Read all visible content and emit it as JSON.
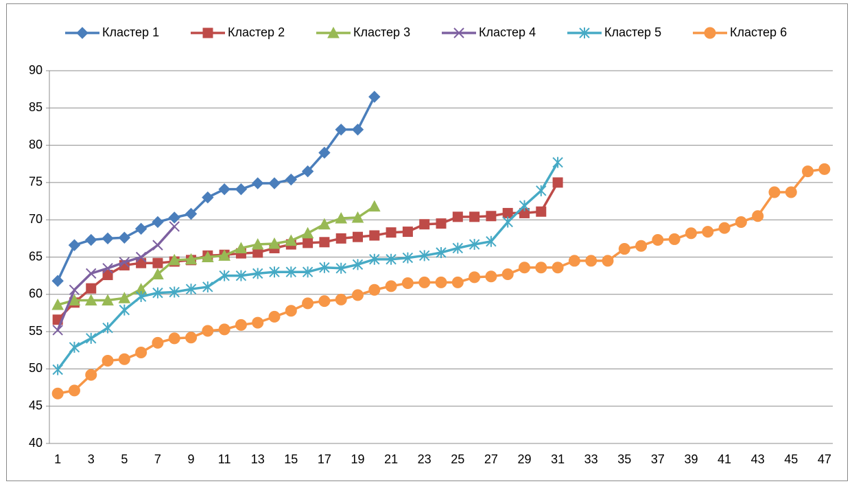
{
  "chart_data": {
    "type": "line",
    "categories": [
      1,
      null,
      3,
      null,
      5,
      null,
      7,
      null,
      9,
      null,
      11,
      null,
      13,
      null,
      15,
      null,
      17,
      null,
      19,
      null,
      21,
      null,
      23,
      null,
      25,
      null,
      27,
      null,
      29,
      null,
      31,
      null,
      33,
      null,
      35,
      null,
      37,
      null,
      39,
      null,
      41,
      null,
      43,
      null,
      45,
      null,
      47
    ],
    "ylim": [
      40,
      90
    ],
    "yticks": [
      40,
      45,
      50,
      55,
      60,
      65,
      70,
      75,
      80,
      85,
      90
    ],
    "grid": true,
    "legend": "top",
    "series": [
      {
        "name": "Кластер 1",
        "color": "#4a7ebb",
        "marker": "diamond",
        "values": [
          61.8,
          66.6,
          67.3,
          67.5,
          67.6,
          68.8,
          69.7,
          70.3,
          70.8,
          73.0,
          74.1,
          74.1,
          74.9,
          74.9,
          75.4,
          76.5,
          79.0,
          82.1,
          82.1,
          86.5,
          null,
          null,
          null,
          null,
          null,
          null,
          null,
          null,
          null,
          null,
          null,
          null,
          null,
          null,
          null,
          null,
          null,
          null,
          null,
          null,
          null,
          null,
          null,
          null,
          null,
          null,
          null
        ]
      },
      {
        "name": "Кластер 2",
        "color": "#be4b48",
        "marker": "square",
        "values": [
          56.6,
          58.9,
          60.8,
          62.6,
          63.9,
          64.2,
          64.2,
          64.4,
          64.6,
          65.2,
          65.3,
          65.5,
          65.6,
          66.2,
          66.7,
          66.9,
          67.0,
          67.5,
          67.7,
          67.9,
          68.3,
          68.4,
          69.4,
          69.5,
          70.4,
          70.4,
          70.5,
          70.9,
          70.9,
          71.1,
          75.0,
          null,
          null,
          null,
          null,
          null,
          null,
          null,
          null,
          null,
          null,
          null,
          null,
          null,
          null,
          null,
          null
        ]
      },
      {
        "name": "Кластер 3",
        "color": "#98b954",
        "marker": "triangle",
        "values": [
          58.6,
          59.2,
          59.2,
          59.2,
          59.5,
          60.7,
          62.7,
          64.6,
          64.7,
          65.0,
          65.2,
          66.2,
          66.7,
          66.8,
          67.2,
          68.2,
          69.4,
          70.2,
          70.3,
          71.8,
          null,
          null,
          null,
          null,
          null,
          null,
          null,
          null,
          null,
          null,
          null,
          null,
          null,
          null,
          null,
          null,
          null,
          null,
          null,
          null,
          null,
          null,
          null,
          null,
          null,
          null,
          null
        ]
      },
      {
        "name": "Кластер 4",
        "color": "#7d60a0",
        "marker": "x",
        "values": [
          55.2,
          60.6,
          62.8,
          63.5,
          64.3,
          65.0,
          66.6,
          69.1,
          null,
          null,
          null,
          null,
          null,
          null,
          null,
          null,
          null,
          null,
          null,
          null,
          null,
          null,
          null,
          null,
          null,
          null,
          null,
          null,
          null,
          null,
          null,
          null,
          null,
          null,
          null,
          null,
          null,
          null,
          null,
          null,
          null,
          null,
          null,
          null,
          null,
          null,
          null
        ]
      },
      {
        "name": "Кластер 5",
        "color": "#46aac5",
        "marker": "star",
        "values": [
          49.9,
          52.9,
          54.1,
          55.5,
          57.9,
          59.7,
          60.2,
          60.3,
          60.7,
          61.0,
          62.5,
          62.5,
          62.8,
          63.0,
          63.0,
          63.0,
          63.6,
          63.5,
          64.0,
          64.7,
          64.7,
          64.9,
          65.2,
          65.6,
          66.2,
          66.7,
          67.1,
          69.7,
          71.9,
          73.9,
          77.7,
          null,
          null,
          null,
          null,
          null,
          null,
          null,
          null,
          null,
          null,
          null,
          null,
          null,
          null,
          null,
          null
        ]
      },
      {
        "name": "Кластер 6",
        "color": "#f79646",
        "marker": "circle",
        "values": [
          46.7,
          47.1,
          49.2,
          51.1,
          51.3,
          52.2,
          53.5,
          54.1,
          54.2,
          55.1,
          55.3,
          55.9,
          56.2,
          57.0,
          57.8,
          58.8,
          59.1,
          59.3,
          59.9,
          60.6,
          61.1,
          61.5,
          61.6,
          61.6,
          61.6,
          62.3,
          62.4,
          62.7,
          63.6,
          63.6,
          63.6,
          64.5,
          64.5,
          64.5,
          66.1,
          66.5,
          67.3,
          67.4,
          68.2,
          68.4,
          68.9,
          69.7,
          70.5,
          73.7,
          73.7,
          76.5,
          76.8
        ]
      }
    ]
  }
}
